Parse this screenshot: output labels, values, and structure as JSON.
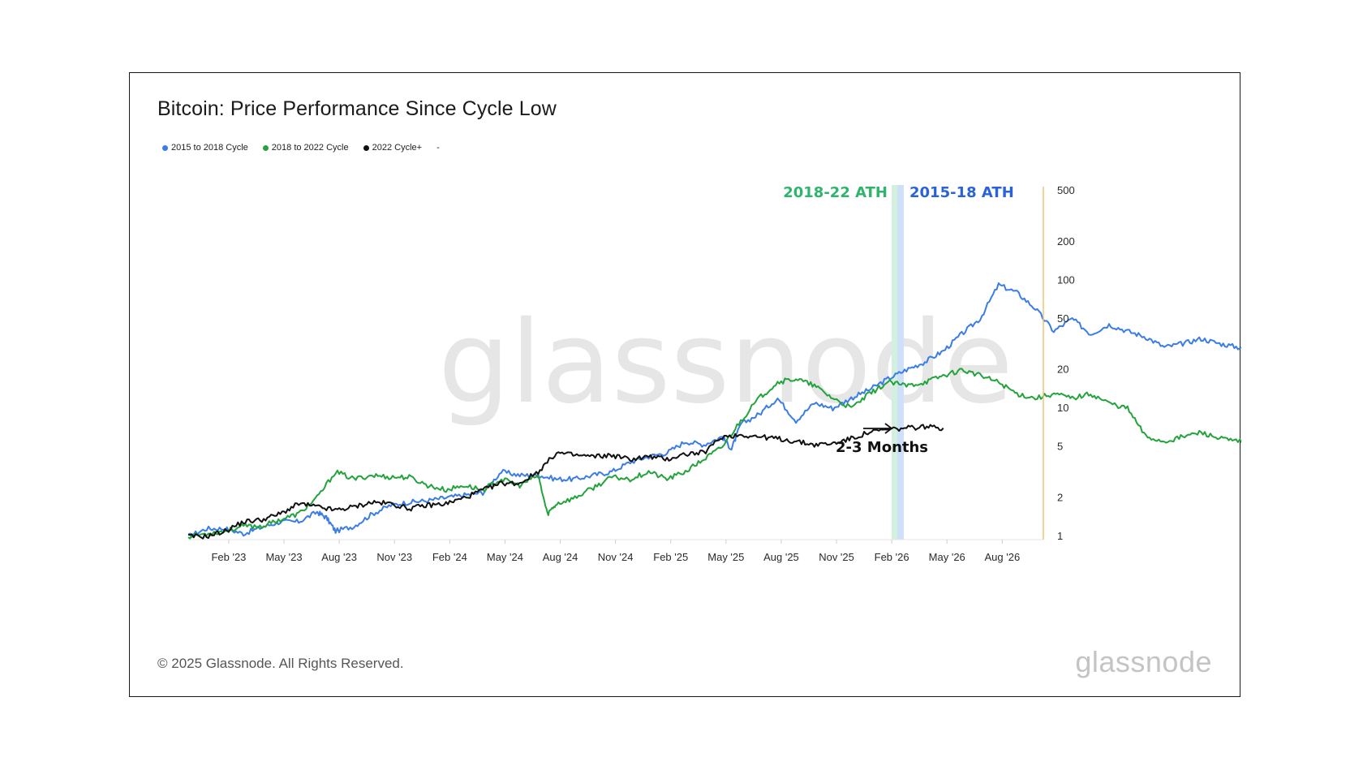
{
  "chart_data": {
    "type": "line",
    "title": "Bitcoin: Price Performance Since Cycle Low",
    "yscale": "log",
    "ylim": [
      1,
      500
    ],
    "y_ticks": [
      "500",
      "200",
      "100",
      "50",
      "20",
      "10",
      "5",
      "2",
      "1"
    ],
    "y_tick_values": [
      500,
      200,
      100,
      50,
      20,
      10,
      5,
      2,
      1
    ],
    "x_ticks": [
      "Feb '23",
      "May '23",
      "Aug '23",
      "Nov '23",
      "Feb '24",
      "May '24",
      "Aug '24",
      "Nov '24",
      "Feb '25",
      "May '25",
      "Aug '25",
      "Nov '25",
      "Feb '26",
      "May '26",
      "Aug '26"
    ],
    "legend": [
      {
        "name": "2015 to 2018 Cycle",
        "color": "#3b7de6"
      },
      {
        "name": "2018 to 2022 Cycle",
        "color": "#22a33c"
      },
      {
        "name": "2022 Cycle+",
        "color": "#111111"
      },
      {
        "name": "-",
        "color": ""
      }
    ],
    "series": [
      {
        "name": "2015 to 2018 Cycle",
        "color": "#3b7de6",
        "points": [
          [
            0,
            1.0
          ],
          [
            1,
            1.15
          ],
          [
            2,
            1.15
          ],
          [
            3,
            1.05
          ],
          [
            4,
            1.18
          ],
          [
            5,
            1.3
          ],
          [
            6,
            1.3
          ],
          [
            7,
            1.55
          ],
          [
            7.5,
            1.4
          ],
          [
            8,
            1.1
          ],
          [
            9,
            1.2
          ],
          [
            10,
            1.5
          ],
          [
            11,
            1.75
          ],
          [
            12,
            1.85
          ],
          [
            13,
            1.9
          ],
          [
            14,
            2.0
          ],
          [
            15,
            2.1
          ],
          [
            16,
            2.2
          ],
          [
            17,
            3.2
          ],
          [
            18,
            3.0
          ],
          [
            19,
            3.0
          ],
          [
            20,
            2.8
          ],
          [
            21,
            2.8
          ],
          [
            22,
            3.0
          ],
          [
            23,
            3.2
          ],
          [
            24,
            3.8
          ],
          [
            25,
            4.2
          ],
          [
            26,
            4.5
          ],
          [
            27,
            5.5
          ],
          [
            28,
            5.2
          ],
          [
            29,
            6.0
          ],
          [
            29.5,
            4.8
          ],
          [
            30,
            7.5
          ],
          [
            31,
            9.0
          ],
          [
            32,
            12.0
          ],
          [
            33,
            8.0
          ],
          [
            34,
            11.0
          ],
          [
            35,
            10.0
          ],
          [
            36,
            12.0
          ],
          [
            37,
            14.0
          ],
          [
            38,
            17.0
          ],
          [
            39,
            20.0
          ],
          [
            40,
            23.0
          ],
          [
            41,
            28.0
          ],
          [
            42,
            38.0
          ],
          [
            43,
            50.0
          ],
          [
            44,
            92.0
          ],
          [
            45,
            80.0
          ],
          [
            46,
            60.0
          ],
          [
            47,
            40.0
          ],
          [
            48,
            50.0
          ],
          [
            49,
            38.0
          ],
          [
            50,
            45.0
          ],
          [
            51,
            40.0
          ],
          [
            52,
            36.0
          ],
          [
            53,
            30.0
          ],
          [
            54,
            32.0
          ],
          [
            55,
            35.0
          ],
          [
            56,
            32.0
          ],
          [
            57,
            30.0
          ],
          [
            58,
            31.0
          ],
          [
            59,
            30.0
          ],
          [
            60,
            29.0
          ],
          [
            61,
            19.0
          ],
          [
            62,
            16.0
          ]
        ]
      },
      {
        "name": "2018 to 2022 Cycle",
        "color": "#22a33c",
        "points": [
          [
            0,
            1.0
          ],
          [
            1,
            1.05
          ],
          [
            2,
            1.1
          ],
          [
            3,
            1.2
          ],
          [
            4,
            1.2
          ],
          [
            5,
            1.35
          ],
          [
            6,
            1.5
          ],
          [
            7,
            2.0
          ],
          [
            8,
            3.2
          ],
          [
            9,
            2.8
          ],
          [
            10,
            3.0
          ],
          [
            11,
            2.9
          ],
          [
            12,
            2.9
          ],
          [
            13,
            2.5
          ],
          [
            14,
            2.3
          ],
          [
            15,
            2.5
          ],
          [
            16,
            2.3
          ],
          [
            17,
            2.8
          ],
          [
            18,
            2.5
          ],
          [
            19,
            3.0
          ],
          [
            19.5,
            1.5
          ],
          [
            20,
            1.8
          ],
          [
            21,
            2.0
          ],
          [
            22,
            2.4
          ],
          [
            23,
            2.9
          ],
          [
            24,
            2.8
          ],
          [
            25,
            3.2
          ],
          [
            26,
            2.8
          ],
          [
            27,
            3.2
          ],
          [
            28,
            4.0
          ],
          [
            29,
            5.0
          ],
          [
            30,
            8.0
          ],
          [
            31,
            12.0
          ],
          [
            32,
            16.0
          ],
          [
            33,
            17.0
          ],
          [
            34,
            15.0
          ],
          [
            35,
            12.0
          ],
          [
            36,
            10.0
          ],
          [
            37,
            13.0
          ],
          [
            38,
            16.0
          ],
          [
            39,
            15.0
          ],
          [
            40,
            16.0
          ],
          [
            41,
            18.0
          ],
          [
            42,
            20.0
          ],
          [
            43,
            18.0
          ],
          [
            44,
            16.0
          ],
          [
            45,
            13.0
          ],
          [
            46,
            12.0
          ],
          [
            47,
            13.0
          ],
          [
            48,
            12.0
          ],
          [
            49,
            13.0
          ],
          [
            50,
            11.0
          ],
          [
            51,
            10.0
          ],
          [
            52,
            6.0
          ],
          [
            53,
            5.5
          ],
          [
            54,
            6.0
          ],
          [
            55,
            6.5
          ],
          [
            56,
            5.8
          ],
          [
            57,
            5.5
          ],
          [
            58,
            5.3
          ],
          [
            59,
            5.8
          ],
          [
            60,
            4.6
          ]
        ]
      },
      {
        "name": "2022 Cycle+",
        "color": "#111111",
        "points": [
          [
            0,
            1.0
          ],
          [
            1,
            1.0
          ],
          [
            2,
            1.1
          ],
          [
            3,
            1.3
          ],
          [
            4,
            1.35
          ],
          [
            5,
            1.5
          ],
          [
            6,
            1.8
          ],
          [
            7,
            1.7
          ],
          [
            8,
            1.6
          ],
          [
            9,
            1.7
          ],
          [
            10,
            1.85
          ],
          [
            11,
            1.8
          ],
          [
            12,
            1.65
          ],
          [
            13,
            1.75
          ],
          [
            14,
            1.8
          ],
          [
            15,
            2.0
          ],
          [
            16,
            2.3
          ],
          [
            17,
            2.6
          ],
          [
            18,
            2.6
          ],
          [
            19,
            3.2
          ],
          [
            20,
            4.5
          ],
          [
            21,
            4.3
          ],
          [
            22,
            4.2
          ],
          [
            23,
            4.3
          ],
          [
            24,
            4.0
          ],
          [
            25,
            4.2
          ],
          [
            26,
            4.0
          ],
          [
            27,
            4.4
          ],
          [
            28,
            4.5
          ],
          [
            29,
            6.0
          ],
          [
            30,
            6.2
          ],
          [
            31,
            6.0
          ],
          [
            32,
            5.8
          ],
          [
            33,
            5.5
          ],
          [
            34,
            5.2
          ],
          [
            35,
            5.3
          ],
          [
            36,
            5.8
          ],
          [
            37,
            6.5
          ],
          [
            38,
            6.8
          ],
          [
            39,
            7.0
          ],
          [
            40,
            7.2
          ],
          [
            41,
            7.0
          ]
        ]
      }
    ],
    "annotations": {
      "ath_2018_22": "2018-22 ATH",
      "ath_2015_18": "2015-18 ATH",
      "forecast": "2-3 Months"
    },
    "watermark": "glassnode"
  },
  "page": {
    "footer": "© 2025 Glassnode. All Rights Reserved.",
    "brand": "glassnode"
  }
}
